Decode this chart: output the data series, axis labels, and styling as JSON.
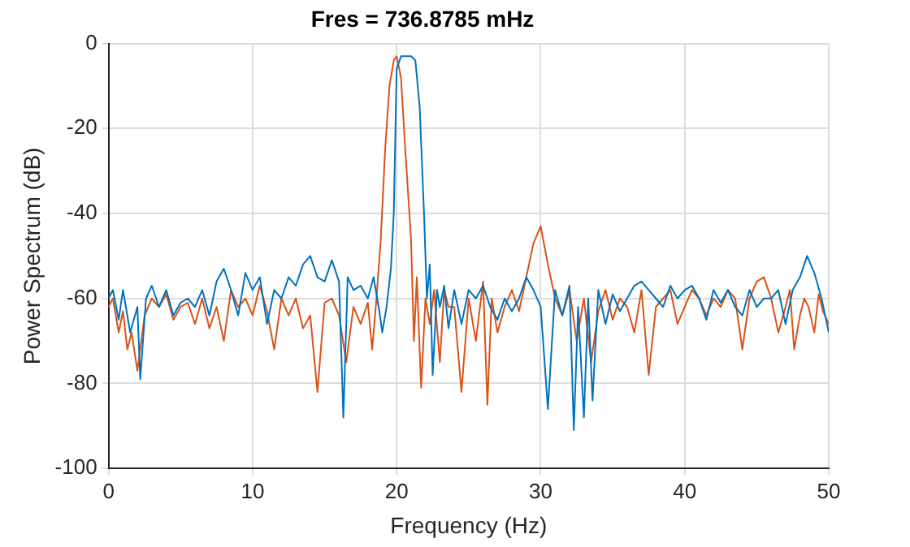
{
  "chart_data": {
    "type": "line",
    "title": "Fres = 736.8785 mHz",
    "xlabel": "Frequency (Hz)",
    "ylabel": "Power Spectrum (dB)",
    "xlim": [
      0,
      50
    ],
    "ylim": [
      -100,
      0
    ],
    "xticks": [
      0,
      10,
      20,
      30,
      40,
      50
    ],
    "yticks": [
      -100,
      -80,
      -60,
      -40,
      -20,
      0
    ],
    "grid": true,
    "legend": false,
    "marker": "none",
    "line_style": "solid",
    "series": [
      {
        "color": "#0072bd",
        "x": [
          0,
          0.3,
          0.7,
          1,
          1.5,
          2,
          2.2,
          2.6,
          3,
          3.5,
          4,
          4.5,
          5,
          5.5,
          6,
          6.5,
          7,
          7.5,
          8,
          8.5,
          9,
          9.5,
          10,
          10.5,
          11,
          11.5,
          12,
          12.5,
          13,
          13.5,
          14,
          14.5,
          15,
          15.5,
          16,
          16.3,
          16.6,
          17,
          17.5,
          18,
          18.4,
          18.8,
          19,
          19.3,
          19.6,
          19.8,
          20,
          20.3,
          20.6,
          21,
          21.3,
          21.6,
          21.9,
          22.1,
          22.3,
          22.5,
          22.8,
          23,
          23.3,
          23.6,
          24,
          24.5,
          25,
          25.5,
          26,
          26.5,
          27,
          27.5,
          28,
          28.5,
          29,
          29.5,
          30,
          30.5,
          31,
          31.5,
          32,
          32.3,
          32.6,
          33,
          33.3,
          33.6,
          34,
          34.5,
          35,
          35.5,
          36,
          36.5,
          37,
          37.5,
          38,
          38.5,
          39,
          39.5,
          40,
          40.5,
          41,
          41.5,
          42,
          42.5,
          43,
          43.5,
          44,
          44.5,
          45,
          45.5,
          46,
          46.5,
          47,
          47.5,
          48,
          48.5,
          49,
          49.5,
          50
        ],
        "values": [
          -60,
          -58,
          -65,
          -58,
          -68,
          -62,
          -79,
          -60,
          -57,
          -62,
          -58,
          -64,
          -61,
          -60,
          -62,
          -58,
          -64,
          -56,
          -53,
          -58,
          -64,
          -54,
          -58,
          -55,
          -66,
          -58,
          -60,
          -55,
          -57,
          -52,
          -50,
          -55,
          -56,
          -51,
          -56,
          -88,
          -55,
          -58,
          -57,
          -60,
          -55,
          -63,
          -68,
          -62,
          -53,
          -40,
          -6,
          -3,
          -3,
          -3,
          -4,
          -15,
          -40,
          -60,
          -52,
          -78,
          -58,
          -62,
          -57,
          -67,
          -58,
          -66,
          -58,
          -60,
          -57,
          -62,
          -65,
          -60,
          -63,
          -60,
          -55,
          -58,
          -62,
          -86,
          -58,
          -64,
          -57,
          -91,
          -62,
          -88,
          -60,
          -84,
          -58,
          -66,
          -59,
          -63,
          -60,
          -57,
          -56,
          -58,
          -60,
          -62,
          -57,
          -60,
          -58,
          -57,
          -60,
          -65,
          -58,
          -61,
          -58,
          -62,
          -64,
          -58,
          -62,
          -60,
          -60,
          -58,
          -66,
          -58,
          -55,
          -50,
          -54,
          -60,
          -68
        ]
      },
      {
        "color": "#d95319",
        "x": [
          0,
          0.3,
          0.7,
          1,
          1.3,
          1.6,
          2,
          2.5,
          3,
          3.5,
          4,
          4.5,
          5,
          5.5,
          6,
          6.5,
          7,
          7.5,
          8,
          8.5,
          9,
          9.5,
          10,
          10.5,
          11,
          11.5,
          12,
          12.5,
          13,
          13.5,
          14,
          14.5,
          15,
          15.5,
          16,
          16.5,
          17,
          17.5,
          18,
          18.3,
          18.6,
          18.9,
          19.2,
          19.5,
          19.8,
          20,
          20.3,
          20.6,
          21,
          21.2,
          21.4,
          21.7,
          22,
          22.3,
          22.6,
          23,
          23.3,
          23.6,
          24,
          24.5,
          25,
          25.5,
          26,
          26.3,
          26.6,
          27,
          27.5,
          28,
          28.5,
          29,
          29.5,
          30,
          30.5,
          31,
          31.5,
          32,
          32.5,
          33,
          33.5,
          34,
          34.5,
          35,
          35.5,
          36,
          36.5,
          37,
          37.5,
          38,
          38.5,
          39,
          39.5,
          40,
          40.5,
          41,
          41.5,
          42,
          42.5,
          43,
          43.5,
          44,
          44.5,
          45,
          45.5,
          46,
          46.5,
          47,
          47.3,
          47.6,
          48,
          48.3,
          48.6,
          49,
          49.3,
          49.6,
          50
        ],
        "values": [
          -62,
          -60,
          -68,
          -63,
          -72,
          -68,
          -77,
          -64,
          -60,
          -62,
          -59,
          -65,
          -62,
          -61,
          -66,
          -60,
          -67,
          -62,
          -70,
          -58,
          -62,
          -60,
          -64,
          -57,
          -63,
          -72,
          -60,
          -64,
          -60,
          -67,
          -64,
          -82,
          -61,
          -60,
          -64,
          -75,
          -62,
          -66,
          -61,
          -72,
          -60,
          -46,
          -25,
          -10,
          -4,
          -3,
          -8,
          -25,
          -46,
          -70,
          -55,
          -81,
          -60,
          -66,
          -58,
          -75,
          -58,
          -62,
          -62,
          -82,
          -60,
          -70,
          -56,
          -85,
          -60,
          -68,
          -62,
          -58,
          -63,
          -55,
          -47,
          -43,
          -52,
          -60,
          -64,
          -58,
          -70,
          -60,
          -75,
          -63,
          -58,
          -65,
          -60,
          -62,
          -68,
          -58,
          -78,
          -62,
          -60,
          -58,
          -66,
          -62,
          -58,
          -60,
          -64,
          -60,
          -62,
          -58,
          -60,
          -72,
          -60,
          -56,
          -55,
          -60,
          -68,
          -62,
          -58,
          -72,
          -64,
          -60,
          -62,
          -68,
          -59,
          -63,
          -66
        ]
      }
    ]
  }
}
